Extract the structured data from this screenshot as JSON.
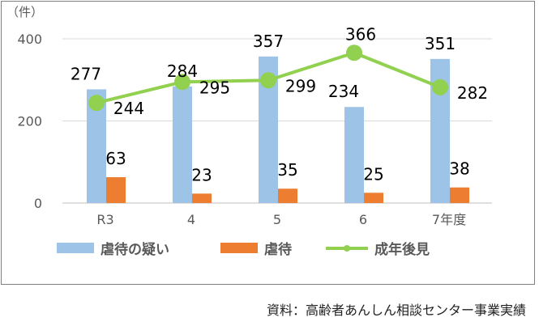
{
  "chart_data": {
    "type": "bar",
    "unit_label": "（件）",
    "categories": [
      "R3",
      "4",
      "5",
      "6",
      "7年度"
    ],
    "series": [
      {
        "name": "虐待の疑い",
        "kind": "bar",
        "color": "#9dc3e6",
        "values": [
          277,
          284,
          357,
          234,
          351
        ]
      },
      {
        "name": "虐待",
        "kind": "bar",
        "color": "#ed7d31",
        "values": [
          63,
          23,
          35,
          25,
          38
        ]
      },
      {
        "name": "成年後見",
        "kind": "line",
        "color": "#92d050",
        "values": [
          244,
          295,
          299,
          366,
          282
        ]
      }
    ],
    "ylim": [
      0,
      400
    ],
    "yticks": [
      0,
      200,
      400
    ],
    "grid": true,
    "legend": "bottom"
  },
  "source": "資料：高齢者あんしん相談センター事業実績"
}
